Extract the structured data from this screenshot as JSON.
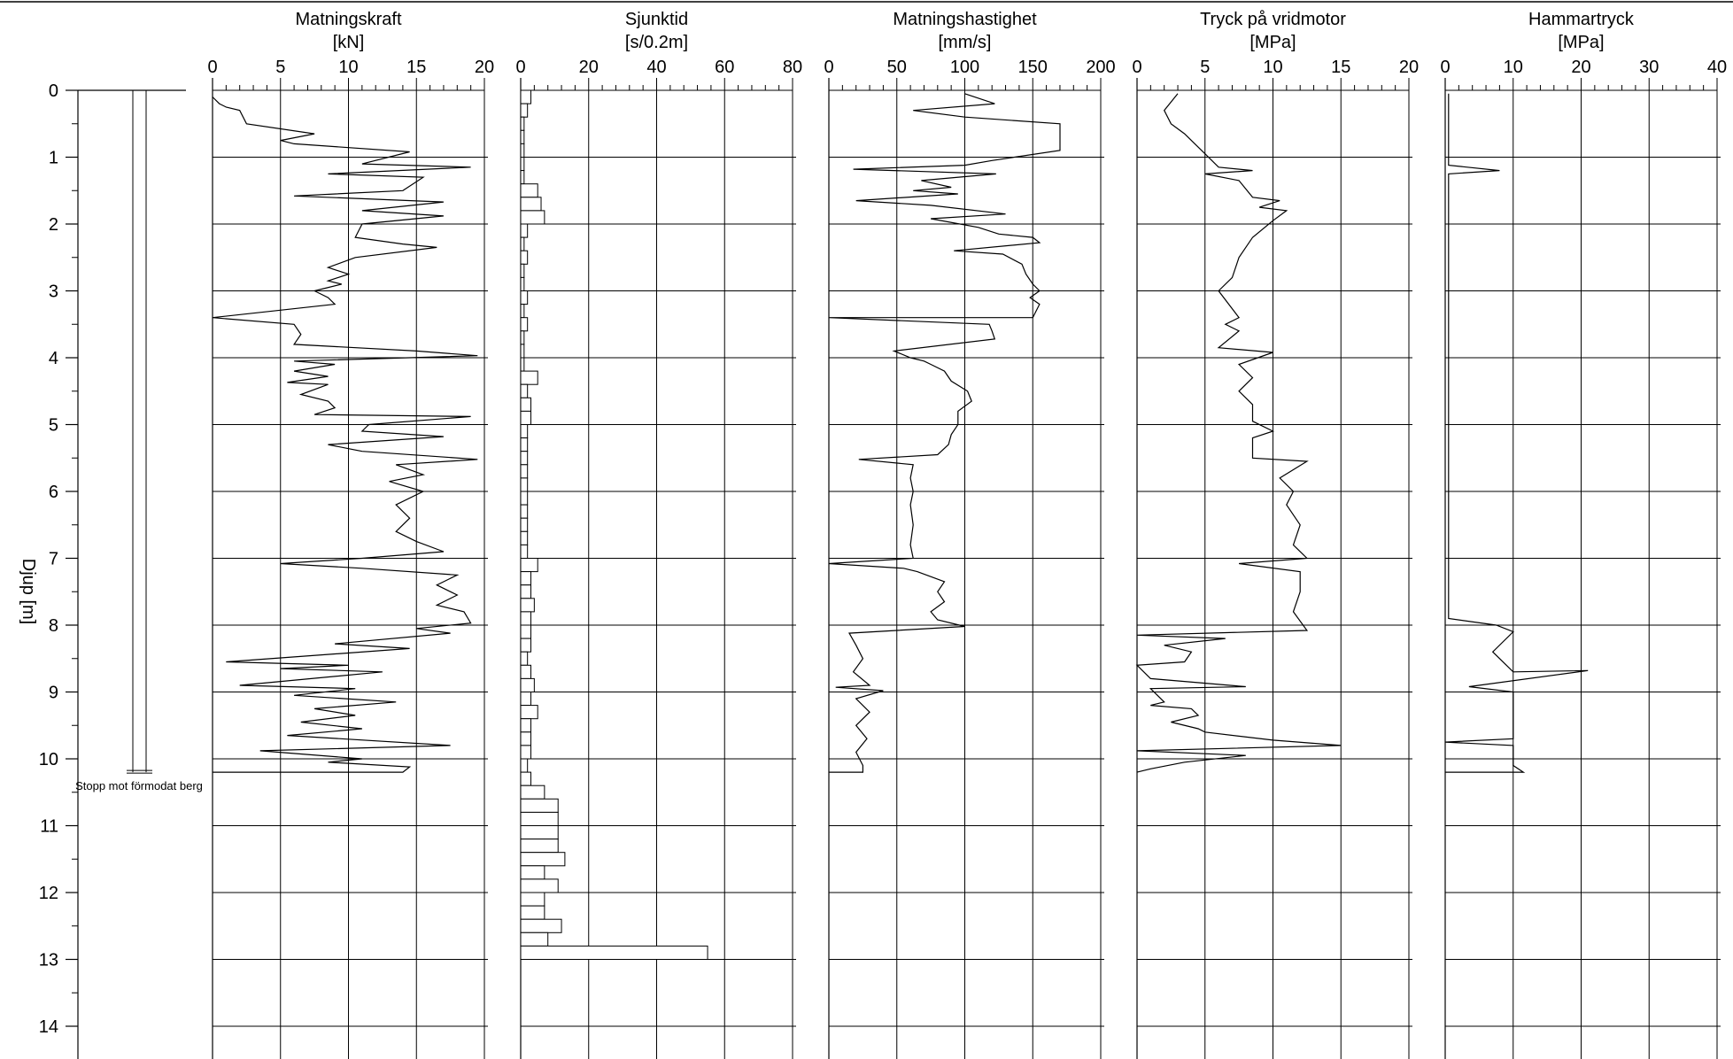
{
  "chart_data": {
    "type": "line",
    "depth_axis": {
      "label": "Djup [m]",
      "range": [
        0,
        14.5
      ],
      "ticks": [
        0,
        1,
        2,
        3,
        4,
        5,
        6,
        7,
        8,
        9,
        10,
        11,
        12,
        13,
        14
      ],
      "tick_labels": [
        "0",
        "1",
        "2",
        "3",
        "4",
        "5",
        "6",
        "7",
        "8",
        "9",
        "10",
        "11",
        "12",
        "13",
        "14"
      ],
      "inverted": true
    },
    "borehole": {
      "bottom_depth": 10.2,
      "annotation": "Stopp mot förmodat berg"
    },
    "panels": [
      {
        "title": "Matningskraft",
        "unit": "[kN]",
        "type": "line",
        "xlim": [
          0,
          20
        ],
        "ticks": [
          0,
          5,
          10,
          15,
          20
        ],
        "tick_labels": [
          "0",
          "5",
          "10",
          "15",
          "20"
        ],
        "points": [
          [
            0.0,
            0.1
          ],
          [
            0.5,
            0.2
          ],
          [
            1.0,
            0.25
          ],
          [
            2.0,
            0.3
          ],
          [
            2.5,
            0.5
          ],
          [
            7.5,
            0.65
          ],
          [
            5.0,
            0.75
          ],
          [
            6.0,
            0.8
          ],
          [
            14.5,
            0.92
          ],
          [
            11.0,
            1.1
          ],
          [
            19.0,
            1.15
          ],
          [
            8.5,
            1.25
          ],
          [
            15.5,
            1.3
          ],
          [
            14.0,
            1.5
          ],
          [
            6.0,
            1.58
          ],
          [
            17.0,
            1.67
          ],
          [
            11.0,
            1.8
          ],
          [
            17.0,
            1.88
          ],
          [
            11.0,
            2.0
          ],
          [
            10.5,
            2.2
          ],
          [
            14.0,
            2.3
          ],
          [
            16.5,
            2.35
          ],
          [
            10.5,
            2.5
          ],
          [
            8.5,
            2.65
          ],
          [
            10.0,
            2.75
          ],
          [
            8.5,
            2.85
          ],
          [
            9.5,
            2.9
          ],
          [
            7.5,
            3.0
          ],
          [
            8.5,
            3.1
          ],
          [
            9.0,
            3.2
          ],
          [
            0.0,
            3.4
          ],
          [
            6.0,
            3.5
          ],
          [
            6.5,
            3.65
          ],
          [
            6.0,
            3.8
          ],
          [
            15.0,
            3.9
          ],
          [
            19.5,
            3.97
          ],
          [
            6.0,
            4.05
          ],
          [
            9.0,
            4.1
          ],
          [
            6.0,
            4.2
          ],
          [
            8.5,
            4.28
          ],
          [
            5.5,
            4.37
          ],
          [
            8.5,
            4.4
          ],
          [
            6.5,
            4.55
          ],
          [
            8.5,
            4.65
          ],
          [
            9.0,
            4.75
          ],
          [
            7.5,
            4.85
          ],
          [
            19.0,
            4.88
          ],
          [
            11.5,
            5.0
          ],
          [
            11.0,
            5.1
          ],
          [
            17.0,
            5.18
          ],
          [
            8.5,
            5.3
          ],
          [
            11.0,
            5.4
          ],
          [
            19.5,
            5.52
          ],
          [
            13.5,
            5.6
          ],
          [
            15.5,
            5.75
          ],
          [
            13.0,
            5.85
          ],
          [
            15.5,
            6.0
          ],
          [
            13.5,
            6.2
          ],
          [
            14.5,
            6.4
          ],
          [
            13.5,
            6.6
          ],
          [
            15.0,
            6.75
          ],
          [
            17.0,
            6.9
          ],
          [
            11.0,
            7.0
          ],
          [
            5.0,
            7.08
          ],
          [
            11.0,
            7.15
          ],
          [
            18.0,
            7.25
          ],
          [
            16.5,
            7.4
          ],
          [
            18.0,
            7.55
          ],
          [
            16.5,
            7.7
          ],
          [
            18.5,
            7.8
          ],
          [
            19.0,
            7.97
          ],
          [
            15.0,
            8.05
          ],
          [
            17.5,
            8.12
          ],
          [
            9.0,
            8.28
          ],
          [
            14.5,
            8.35
          ],
          [
            1.0,
            8.55
          ],
          [
            10.0,
            8.6
          ],
          [
            5.0,
            8.65
          ],
          [
            12.5,
            8.7
          ],
          [
            2.0,
            8.9
          ],
          [
            10.5,
            8.95
          ],
          [
            6.0,
            9.05
          ],
          [
            13.5,
            9.15
          ],
          [
            7.5,
            9.25
          ],
          [
            10.5,
            9.35
          ],
          [
            6.5,
            9.45
          ],
          [
            11.0,
            9.55
          ],
          [
            5.5,
            9.65
          ],
          [
            17.5,
            9.8
          ],
          [
            3.5,
            9.88
          ],
          [
            11.0,
            10.0
          ],
          [
            8.5,
            10.05
          ],
          [
            14.5,
            10.12
          ],
          [
            14.0,
            10.2
          ],
          [
            0.0,
            10.2
          ]
        ]
      },
      {
        "title": "Sjunktid",
        "unit": "[s/0.2m]",
        "type": "step",
        "xlim": [
          0,
          80
        ],
        "ticks": [
          0,
          20,
          40,
          60,
          80
        ],
        "tick_labels": [
          "0",
          "20",
          "40",
          "60",
          "80"
        ],
        "step_depth": 0.2,
        "values": [
          3,
          2,
          1,
          1,
          1,
          1,
          1,
          5,
          6,
          7,
          2,
          1,
          2,
          1,
          1,
          2,
          1,
          2,
          1,
          1,
          1,
          5,
          2,
          3,
          3,
          2,
          2,
          2,
          2,
          2,
          2,
          2,
          2,
          2,
          2,
          5,
          3,
          3,
          4,
          3,
          3,
          3,
          2,
          3,
          4,
          3,
          5,
          3,
          3,
          3,
          2,
          3,
          7,
          11,
          11,
          11,
          11,
          13,
          7,
          11,
          7,
          7,
          12,
          8,
          55
        ]
      },
      {
        "title": "Matningshastighet",
        "unit": "[mm/s]",
        "type": "line",
        "xlim": [
          0,
          200
        ],
        "ticks": [
          0,
          50,
          100,
          150,
          200
        ],
        "tick_labels": [
          "0",
          "50",
          "100",
          "150",
          "200"
        ],
        "points": [
          [
            100,
            0.05
          ],
          [
            122,
            0.2
          ],
          [
            62,
            0.3
          ],
          [
            100,
            0.4
          ],
          [
            170,
            0.5
          ],
          [
            170,
            0.9
          ],
          [
            120,
            1.05
          ],
          [
            100,
            1.12
          ],
          [
            18,
            1.18
          ],
          [
            123,
            1.25
          ],
          [
            68,
            1.35
          ],
          [
            90,
            1.45
          ],
          [
            62,
            1.5
          ],
          [
            95,
            1.55
          ],
          [
            20,
            1.65
          ],
          [
            75,
            1.72
          ],
          [
            130,
            1.85
          ],
          [
            75,
            1.92
          ],
          [
            110,
            2.05
          ],
          [
            125,
            2.15
          ],
          [
            150,
            2.2
          ],
          [
            155,
            2.28
          ],
          [
            92,
            2.4
          ],
          [
            128,
            2.45
          ],
          [
            142,
            2.6
          ],
          [
            145,
            2.75
          ],
          [
            150,
            2.9
          ],
          [
            155,
            3.0
          ],
          [
            148,
            3.1
          ],
          [
            155,
            3.2
          ],
          [
            150,
            3.4
          ],
          [
            0,
            3.4
          ],
          [
            118,
            3.5
          ],
          [
            120,
            3.6
          ],
          [
            122,
            3.72
          ],
          [
            48,
            3.9
          ],
          [
            60,
            4.0
          ],
          [
            70,
            4.05
          ],
          [
            75,
            4.1
          ],
          [
            85,
            4.2
          ],
          [
            90,
            4.35
          ],
          [
            102,
            4.5
          ],
          [
            105,
            4.65
          ],
          [
            95,
            4.8
          ],
          [
            95,
            5.0
          ],
          [
            90,
            5.15
          ],
          [
            88,
            5.3
          ],
          [
            80,
            5.45
          ],
          [
            22,
            5.52
          ],
          [
            62,
            5.6
          ],
          [
            60,
            5.8
          ],
          [
            62,
            6.0
          ],
          [
            60,
            6.2
          ],
          [
            62,
            6.5
          ],
          [
            60,
            6.8
          ],
          [
            62,
            7.0
          ],
          [
            0,
            7.08
          ],
          [
            55,
            7.15
          ],
          [
            65,
            7.2
          ],
          [
            85,
            7.35
          ],
          [
            80,
            7.5
          ],
          [
            85,
            7.65
          ],
          [
            75,
            7.8
          ],
          [
            80,
            7.92
          ],
          [
            100,
            8.02
          ],
          [
            15,
            8.12
          ],
          [
            20,
            8.3
          ],
          [
            25,
            8.5
          ],
          [
            18,
            8.7
          ],
          [
            30,
            8.9
          ],
          [
            5,
            8.93
          ],
          [
            40,
            8.98
          ],
          [
            20,
            9.1
          ],
          [
            30,
            9.3
          ],
          [
            20,
            9.5
          ],
          [
            28,
            9.7
          ],
          [
            20,
            9.9
          ],
          [
            25,
            10.1
          ],
          [
            25,
            10.2
          ],
          [
            0,
            10.2
          ]
        ]
      },
      {
        "title": "Tryck på vridmotor",
        "unit": "[MPa]",
        "type": "line",
        "xlim": [
          0,
          20
        ],
        "ticks": [
          0,
          5,
          10,
          15,
          20
        ],
        "tick_labels": [
          "0",
          "5",
          "10",
          "15",
          "20"
        ],
        "points": [
          [
            3.0,
            0.05
          ],
          [
            2.0,
            0.3
          ],
          [
            2.5,
            0.5
          ],
          [
            3.5,
            0.65
          ],
          [
            4.5,
            0.85
          ],
          [
            5.0,
            0.95
          ],
          [
            6.0,
            1.15
          ],
          [
            8.5,
            1.2
          ],
          [
            5.0,
            1.25
          ],
          [
            7.5,
            1.35
          ],
          [
            8.5,
            1.6
          ],
          [
            10.5,
            1.65
          ],
          [
            9.0,
            1.75
          ],
          [
            11.0,
            1.8
          ],
          [
            10.0,
            1.95
          ],
          [
            8.5,
            2.2
          ],
          [
            7.5,
            2.5
          ],
          [
            7.0,
            2.8
          ],
          [
            6.0,
            3.0
          ],
          [
            7.5,
            3.4
          ],
          [
            6.5,
            3.5
          ],
          [
            7.5,
            3.6
          ],
          [
            6.0,
            3.85
          ],
          [
            10.0,
            3.92
          ],
          [
            7.5,
            4.1
          ],
          [
            8.5,
            4.3
          ],
          [
            7.5,
            4.5
          ],
          [
            8.5,
            4.7
          ],
          [
            8.5,
            4.95
          ],
          [
            10.0,
            5.1
          ],
          [
            8.5,
            5.2
          ],
          [
            8.5,
            5.5
          ],
          [
            12.5,
            5.55
          ],
          [
            10.5,
            5.8
          ],
          [
            11.5,
            6.0
          ],
          [
            11.0,
            6.2
          ],
          [
            12.0,
            6.5
          ],
          [
            11.5,
            6.8
          ],
          [
            12.5,
            7.0
          ],
          [
            7.5,
            7.08
          ],
          [
            12.0,
            7.2
          ],
          [
            12.0,
            7.5
          ],
          [
            11.5,
            7.8
          ],
          [
            12.5,
            8.08
          ],
          [
            0.0,
            8.15
          ],
          [
            6.5,
            8.2
          ],
          [
            2.0,
            8.3
          ],
          [
            4.0,
            8.4
          ],
          [
            3.5,
            8.55
          ],
          [
            0.0,
            8.6
          ],
          [
            1.0,
            8.8
          ],
          [
            8.0,
            8.92
          ],
          [
            1.0,
            8.95
          ],
          [
            2.0,
            9.15
          ],
          [
            1.0,
            9.2
          ],
          [
            4.0,
            9.25
          ],
          [
            4.5,
            9.35
          ],
          [
            2.5,
            9.45
          ],
          [
            4.5,
            9.55
          ],
          [
            5.0,
            9.6
          ],
          [
            10.0,
            9.72
          ],
          [
            15.0,
            9.8
          ],
          [
            0.0,
            9.88
          ],
          [
            8.0,
            9.95
          ],
          [
            3.5,
            10.05
          ],
          [
            1.0,
            10.15
          ],
          [
            0.0,
            10.2
          ]
        ]
      },
      {
        "title": "Hammartryck",
        "unit": "[MPa]",
        "type": "line",
        "xlim": [
          0,
          40
        ],
        "ticks": [
          0,
          10,
          20,
          30,
          40
        ],
        "tick_labels": [
          "0",
          "10",
          "20",
          "30",
          "40"
        ],
        "points": [
          [
            0.5,
            0.05
          ],
          [
            0.5,
            1.12
          ],
          [
            8.0,
            1.2
          ],
          [
            0.5,
            1.25
          ],
          [
            0.5,
            7.9
          ],
          [
            7.5,
            8.0
          ],
          [
            10.0,
            8.1
          ],
          [
            7.0,
            8.4
          ],
          [
            10.0,
            8.7
          ],
          [
            21.0,
            8.68
          ],
          [
            3.5,
            8.92
          ],
          [
            10.0,
            9.0
          ],
          [
            10.0,
            9.7
          ],
          [
            0.0,
            9.75
          ],
          [
            10.0,
            9.8
          ],
          [
            10.0,
            10.1
          ],
          [
            11.5,
            10.2
          ],
          [
            0.0,
            10.2
          ]
        ]
      }
    ]
  }
}
